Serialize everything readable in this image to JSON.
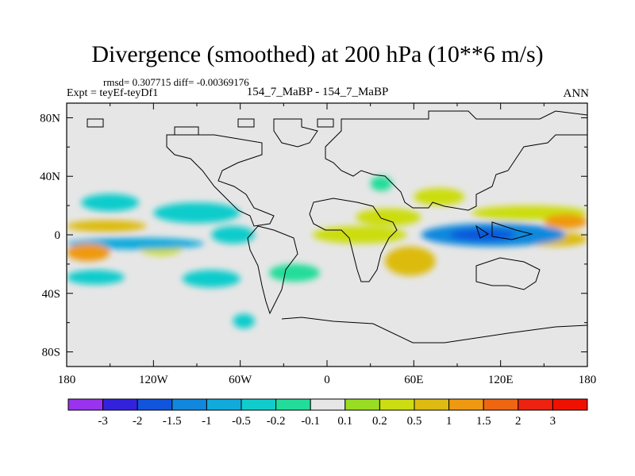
{
  "header": {
    "title": "Divergence (smoothed) at 200 hPa (10**6 m/s)",
    "stats": "rmsd= 0.307715 diff= -0.00369176",
    "experiment": "Expt = teyEf-teyDf1",
    "case": "154_7_MaBP - 154_7_MaBP",
    "season": "ANN"
  },
  "chart_data": {
    "type": "heatmap",
    "title": "Divergence (smoothed) at 200 hPa (10**6 m/s)",
    "xlabel": "",
    "ylabel": "",
    "xlim": [
      -180,
      180
    ],
    "ylim": [
      -90,
      90
    ],
    "x_ticks": [
      {
        "value": -180,
        "label": "180"
      },
      {
        "value": -120,
        "label": "120W"
      },
      {
        "value": -60,
        "label": "60W"
      },
      {
        "value": 0,
        "label": "0"
      },
      {
        "value": 60,
        "label": "60E"
      },
      {
        "value": 120,
        "label": "120E"
      },
      {
        "value": 180,
        "label": "180"
      }
    ],
    "y_ticks": [
      {
        "value": 80,
        "label": "80N"
      },
      {
        "value": 40,
        "label": "40N"
      },
      {
        "value": 0,
        "label": "0"
      },
      {
        "value": -40,
        "label": "40S"
      },
      {
        "value": -80,
        "label": "80S"
      }
    ],
    "colorbar": {
      "labels": [
        "-3",
        "-2",
        "-1.5",
        "-1",
        "-0.5",
        "-0.2",
        "-0.1",
        "0.1",
        "0.2",
        "0.5",
        "1",
        "1.5",
        "2",
        "3"
      ],
      "colors": [
        "#9933ee",
        "#3322dd",
        "#1155dd",
        "#1188dd",
        "#11aadd",
        "#11cccc",
        "#22dd99",
        "#e6e6e6",
        "#99dd22",
        "#ccdd11",
        "#ddbb11",
        "#ee9911",
        "#ee6611",
        "#ee2211",
        "#ee1100"
      ]
    },
    "features": [
      {
        "lon": [
          -180,
          -125
        ],
        "lat": [
          2,
          10
        ],
        "value": 0.7
      },
      {
        "lon": [
          -180,
          -150
        ],
        "lat": [
          -18,
          -6
        ],
        "value": 1.2
      },
      {
        "lon": [
          -130,
          -100
        ],
        "lat": [
          -14,
          -4
        ],
        "value": 0.4
      },
      {
        "lon": [
          -180,
          -85
        ],
        "lat": [
          -10,
          -2
        ],
        "value": -0.6
      },
      {
        "lon": [
          -170,
          -130
        ],
        "lat": [
          16,
          28
        ],
        "value": -0.4
      },
      {
        "lon": [
          -120,
          -60
        ],
        "lat": [
          8,
          22
        ],
        "value": -0.3
      },
      {
        "lon": [
          -180,
          -140
        ],
        "lat": [
          -34,
          -24
        ],
        "value": -0.4
      },
      {
        "lon": [
          -100,
          -60
        ],
        "lat": [
          -36,
          -24
        ],
        "value": -0.3
      },
      {
        "lon": [
          -80,
          -50
        ],
        "lat": [
          -6,
          6
        ],
        "value": -0.4
      },
      {
        "lon": [
          -40,
          -5
        ],
        "lat": [
          -32,
          -20
        ],
        "value": -0.2
      },
      {
        "lon": [
          -10,
          55
        ],
        "lat": [
          -6,
          6
        ],
        "value": 0.4
      },
      {
        "lon": [
          20,
          65
        ],
        "lat": [
          6,
          18
        ],
        "value": 0.3
      },
      {
        "lon": [
          40,
          75
        ],
        "lat": [
          -28,
          -8
        ],
        "value": 0.6
      },
      {
        "lon": [
          65,
          165
        ],
        "lat": [
          -8,
          8
        ],
        "value": -1.2
      },
      {
        "lon": [
          85,
          130
        ],
        "lat": [
          -4,
          4
        ],
        "value": -1.8
      },
      {
        "lon": [
          135,
          180
        ],
        "lat": [
          -8,
          2
        ],
        "value": 0.8
      },
      {
        "lon": [
          150,
          180
        ],
        "lat": [
          4,
          14
        ],
        "value": 1.1
      },
      {
        "lon": [
          100,
          180
        ],
        "lat": [
          10,
          20
        ],
        "value": 0.2
      },
      {
        "lon": [
          60,
          95
        ],
        "lat": [
          20,
          32
        ],
        "value": 0.2
      },
      {
        "lon": [
          30,
          45
        ],
        "lat": [
          30,
          40
        ],
        "value": -0.2
      },
      {
        "lon": [
          -65,
          -50
        ],
        "lat": [
          -64,
          -54
        ],
        "value": -0.3
      }
    ]
  }
}
